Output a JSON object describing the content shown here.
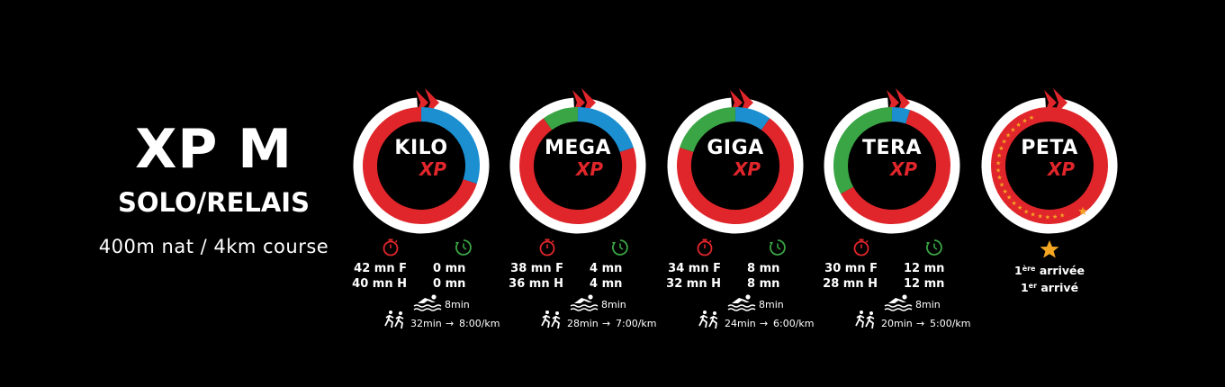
{
  "header": {
    "title": "XP M",
    "subtitle": "SOLO/RELAIS",
    "description": "400m nat / 4km course"
  },
  "xp_suffix": "XP",
  "colors": {
    "red": "#e0262b",
    "green": "#3aa544",
    "blue": "#1c8fd1",
    "white": "#ffffff",
    "star": "#f5a623"
  },
  "levels": [
    {
      "name": "KILO",
      "time_f": "42 mn F",
      "time_h": "40 mn H",
      "bonus_f": "0 mn",
      "bonus_h": "0 mn",
      "swim": "8min",
      "run_time": "32min",
      "run_pace": "8:00/km",
      "ring": {
        "green_frac": 0.0,
        "blue_frac": 0.3
      }
    },
    {
      "name": "MEGA",
      "time_f": "38 mn F",
      "time_h": "36 mn H",
      "bonus_f": "4 mn",
      "bonus_h": "4 mn",
      "swim": "8min",
      "run_time": "28min",
      "run_pace": "7:00/km",
      "ring": {
        "green_frac": 0.1,
        "blue_frac": 0.2
      }
    },
    {
      "name": "GIGA",
      "time_f": "34 mn F",
      "time_h": "32 mn H",
      "bonus_f": "8 mn",
      "bonus_h": "8 mn",
      "swim": "8min",
      "run_time": "24min",
      "run_pace": "6:00/km",
      "ring": {
        "green_frac": 0.2,
        "blue_frac": 0.1
      }
    },
    {
      "name": "TERA",
      "time_f": "30 mn F",
      "time_h": "28 mn H",
      "bonus_f": "12 mn",
      "bonus_h": "12 mn",
      "swim": "8min",
      "run_time": "20min",
      "run_pace": "5:00/km",
      "ring": {
        "green_frac": 0.33,
        "blue_frac": 0.05
      }
    }
  ],
  "peta": {
    "name": "PETA",
    "line1_pre": "1",
    "line1_sup": "ère",
    "line1_post": " arrivée",
    "line2_pre": "1",
    "line2_sup": "er",
    "line2_post": " arrivé"
  }
}
